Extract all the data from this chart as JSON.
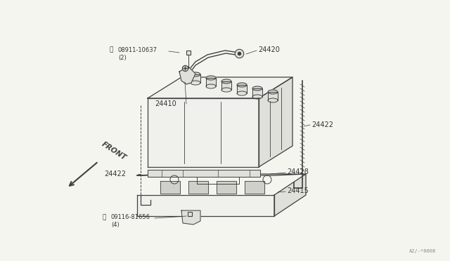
{
  "bg_color": "#f5f5f0",
  "line_color": "#404040",
  "text_color": "#333333",
  "face_color_light": "#f0f0ec",
  "face_color_mid": "#e0e0db",
  "face_color_dark": "#d0d0ca",
  "watermark": "A2/-*0008",
  "fs_label": 7.0,
  "fs_small": 6.0
}
